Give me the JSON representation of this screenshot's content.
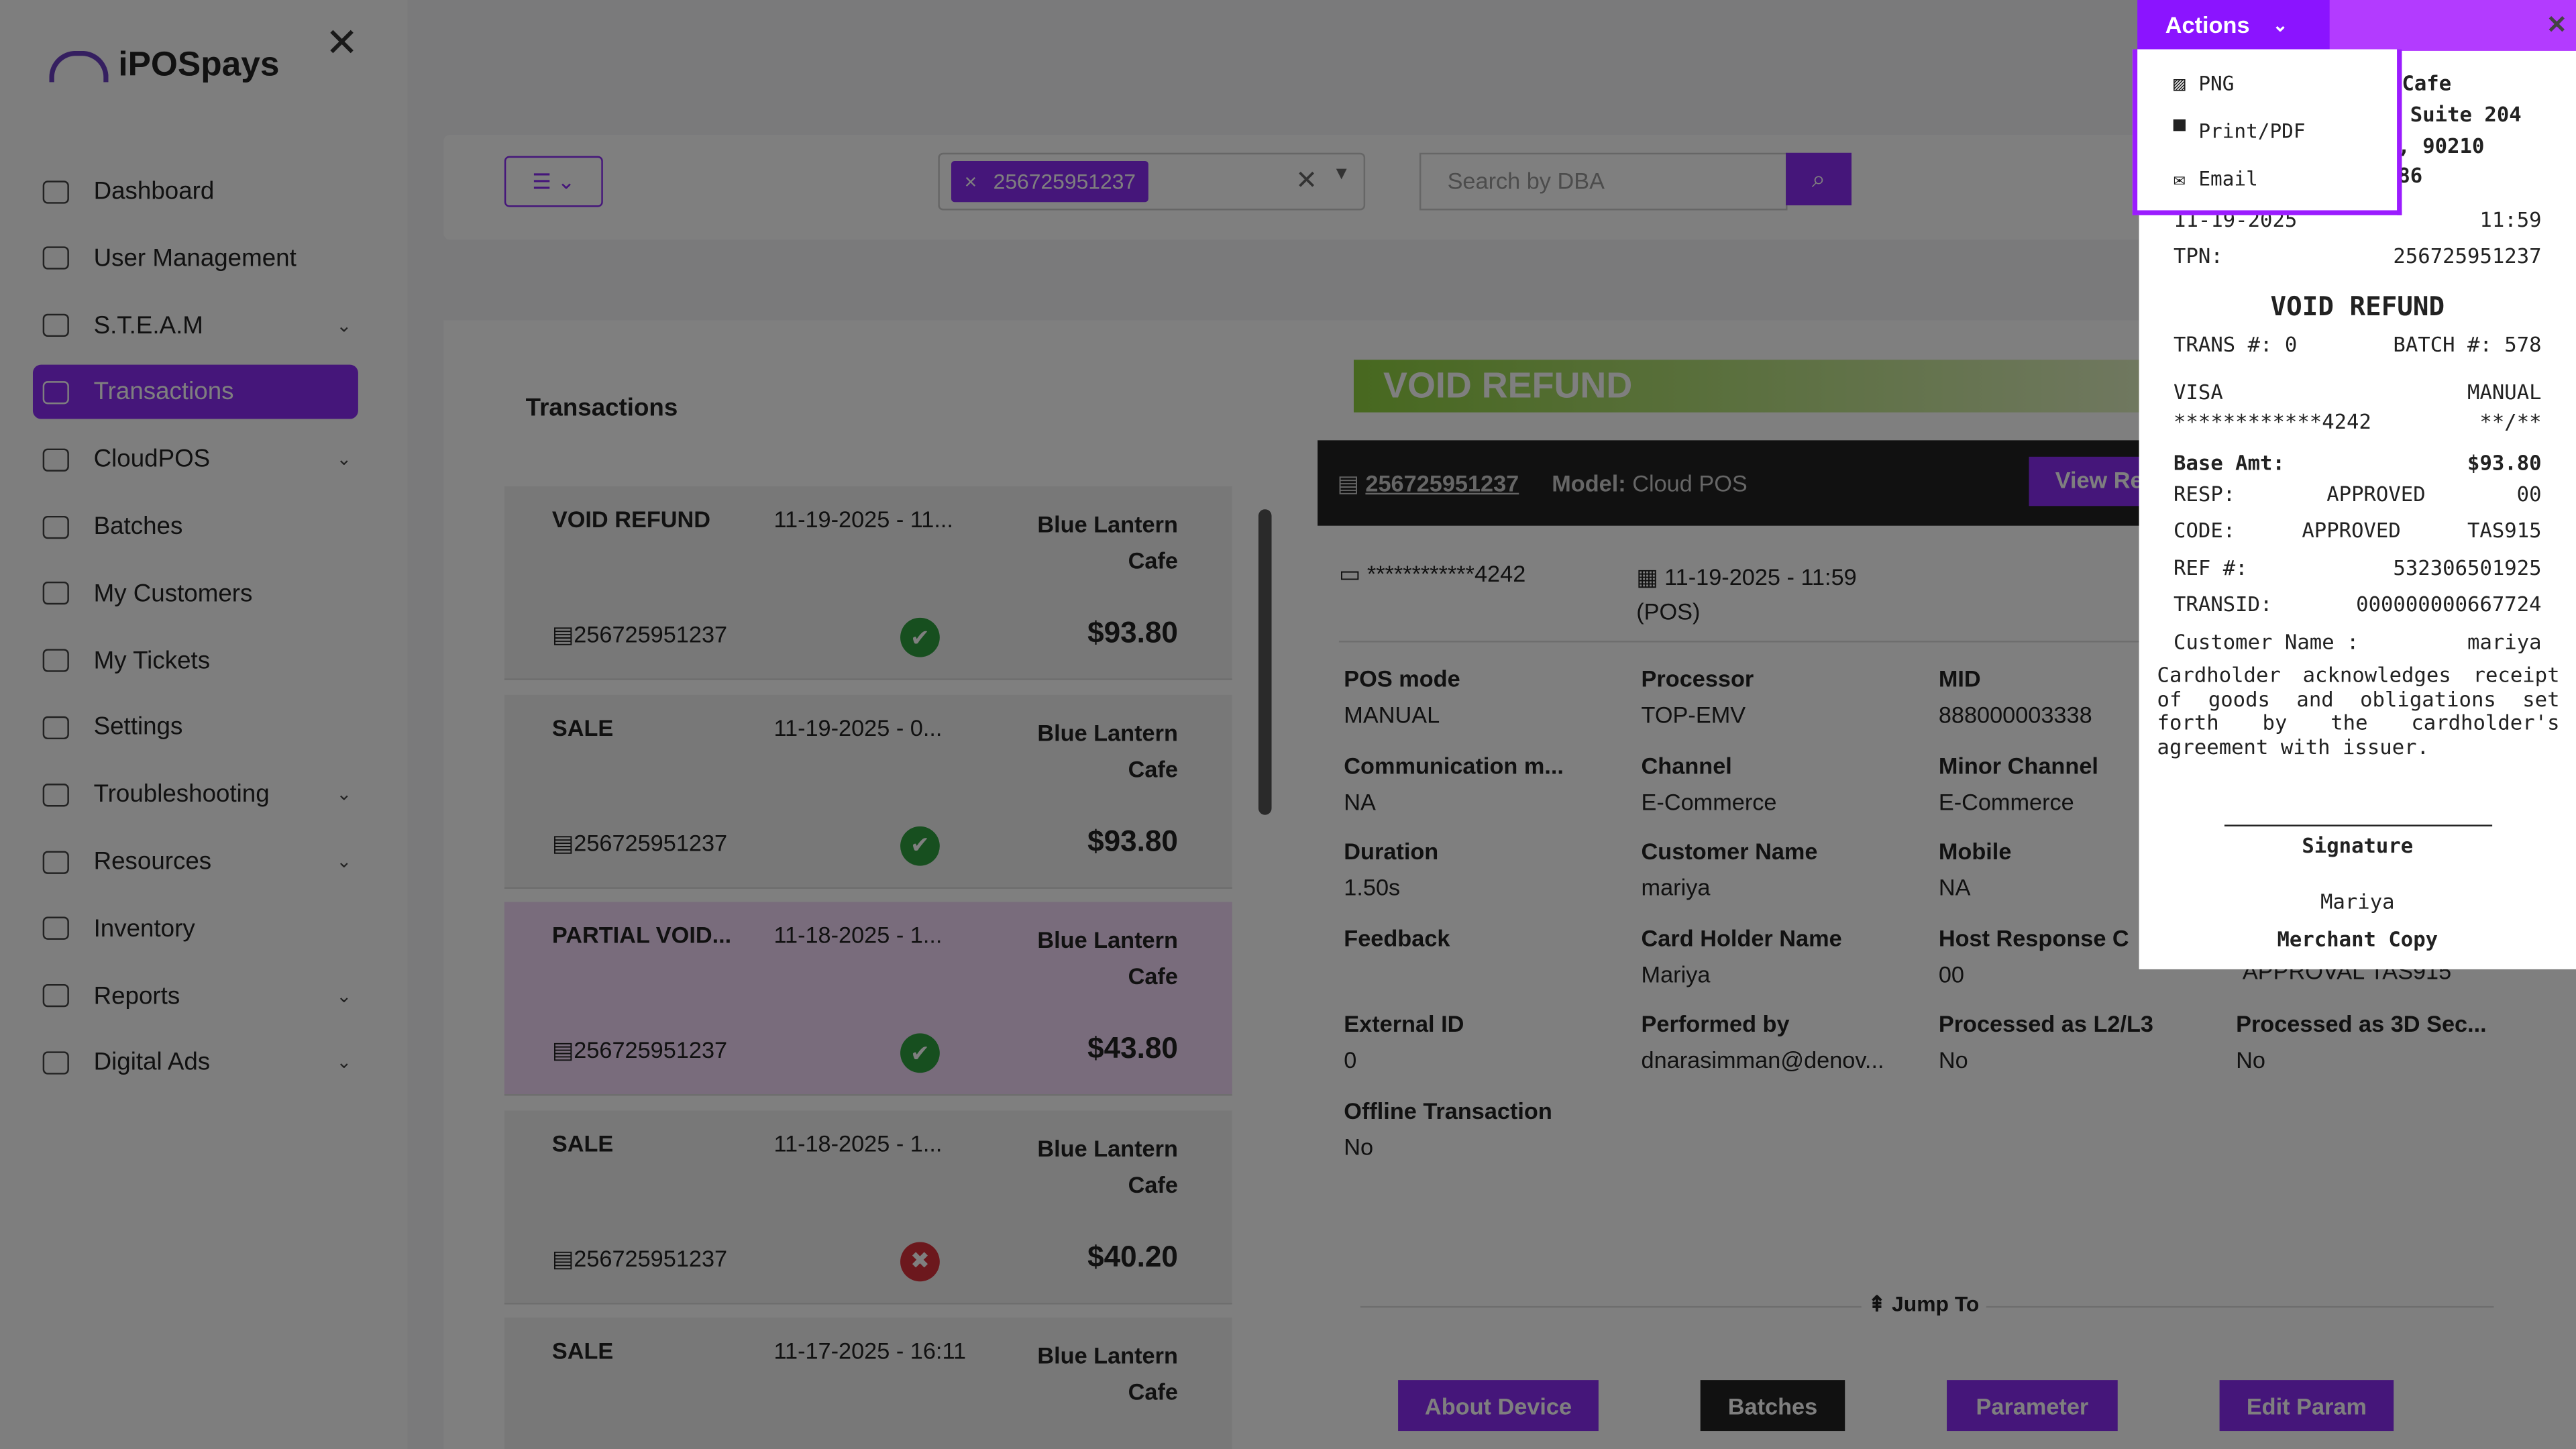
{
  "app": {
    "logo": "iPOSpays"
  },
  "sidebar": {
    "items": [
      {
        "label": "Dashboard",
        "chevron": false
      },
      {
        "label": "User Management",
        "chevron": false
      },
      {
        "label": "S.T.E.A.M",
        "chevron": true
      },
      {
        "label": "Transactions",
        "chevron": false,
        "active": true
      },
      {
        "label": "CloudPOS",
        "chevron": true
      },
      {
        "label": "Batches",
        "chevron": false
      },
      {
        "label": "My Customers",
        "chevron": false
      },
      {
        "label": "My Tickets",
        "chevron": false
      },
      {
        "label": "Settings",
        "chevron": false
      },
      {
        "label": "Troubleshooting",
        "chevron": true
      },
      {
        "label": "Resources",
        "chevron": true
      },
      {
        "label": "Inventory",
        "chevron": false
      },
      {
        "label": "Reports",
        "chevron": true
      },
      {
        "label": "Digital Ads",
        "chevron": true
      }
    ]
  },
  "filters": {
    "tpn_chip": "256725951237",
    "search_placeholder": "Search by DBA"
  },
  "transactions": {
    "title": "Transactions",
    "items": [
      {
        "type": "VOID REFUND",
        "date": "11-19-2025 - 11...",
        "merchant": "Blue Lantern Cafe",
        "tpn": "256725951237",
        "status": "success",
        "amount": "$93.80"
      },
      {
        "type": "SALE",
        "date": "11-19-2025 - 0...",
        "merchant": "Blue Lantern Cafe",
        "tpn": "256725951237",
        "status": "success",
        "amount": "$93.80"
      },
      {
        "type": "PARTIAL VOID...",
        "date": "11-18-2025 - 1...",
        "merchant": "Blue Lantern Cafe",
        "tpn": "256725951237",
        "status": "success",
        "amount": "$43.80"
      },
      {
        "type": "SALE",
        "date": "11-18-2025 - 1...",
        "merchant": "Blue Lantern Cafe",
        "tpn": "256725951237",
        "status": "failed",
        "amount": "$40.20"
      },
      {
        "type": "SALE",
        "date": "11-17-2025 - 16:11",
        "merchant": "Blue Lantern Cafe",
        "tpn": "",
        "status": "",
        "amount": ""
      }
    ]
  },
  "detail": {
    "banner": "VOID REFUND",
    "tpn": "256725951237",
    "model_label": "Model:",
    "model": "Cloud POS",
    "view_button": "View Re",
    "card": "************4242",
    "datetime": "11-19-2025 - 11:59",
    "source": "(POS)",
    "fields": [
      {
        "label": "POS mode",
        "value": "MANUAL"
      },
      {
        "label": "Processor",
        "value": "TOP-EMV"
      },
      {
        "label": "MID",
        "value": "888000003338"
      },
      {
        "label": "Communication m...",
        "value": "NA"
      },
      {
        "label": "Channel",
        "value": "E-Commerce"
      },
      {
        "label": "Minor Channel",
        "value": "E-Commerce"
      },
      {
        "label": "Duration",
        "value": "1.50s"
      },
      {
        "label": "Customer Name",
        "value": "mariya"
      },
      {
        "label": "Mobile",
        "value": "NA"
      },
      {
        "label": "Feedback",
        "value": ""
      },
      {
        "label": "Card Holder Name",
        "value": "Mariya"
      },
      {
        "label": "Host Response C",
        "value": "00"
      },
      {
        "label": "External ID",
        "value": "0"
      },
      {
        "label": "Performed by",
        "value": "dnarasimman@denov..."
      },
      {
        "label": "Processed as L2/L3",
        "value": "No"
      },
      {
        "label": "Processed as 3D Sec...",
        "value": "No"
      },
      {
        "label": "Offline Transaction",
        "value": "No"
      }
    ],
    "partial_hidden": "APPROVAL TAS915",
    "jump_to": "Jump To",
    "buttons": [
      "About Device",
      "Batches",
      "Parameter",
      "Edit Param"
    ]
  },
  "receipt": {
    "merchant": "Cafe",
    "address1": "d Suite 204",
    "address2": "A, 90210",
    "phone": "286",
    "date": "11-19-2025",
    "time": "11:59",
    "tpn_label": "TPN:",
    "tpn": "256725951237",
    "title": "VOID REFUND",
    "trans": "TRANS #: 0",
    "batch": "BATCH #: 578",
    "brand": "VISA",
    "entry": "MANUAL",
    "card": "************4242",
    "exp": "**/**",
    "base_label": "Base Amt:",
    "base": "$93.80",
    "resp_label": "RESP:",
    "resp": "APPROVED",
    "resp_code": "00",
    "code_label": "CODE:",
    "code": "APPROVED",
    "code_val": "TAS915",
    "ref_label": "REF #:",
    "ref": "532306501925",
    "transid_label": "TRANSID:",
    "transid": "000000000667724",
    "cust_label": "Customer Name :",
    "cust": "mariya",
    "disclaimer": "Cardholder acknowledges receipt of goods and obligations set forth by the cardholder's agreement with issuer.",
    "signature_label": "Signature",
    "signature_name": "Mariya",
    "copy": "Merchant Copy"
  },
  "actions": {
    "label": "Actions",
    "items": [
      "PNG",
      "Print/PDF",
      "Email"
    ]
  }
}
